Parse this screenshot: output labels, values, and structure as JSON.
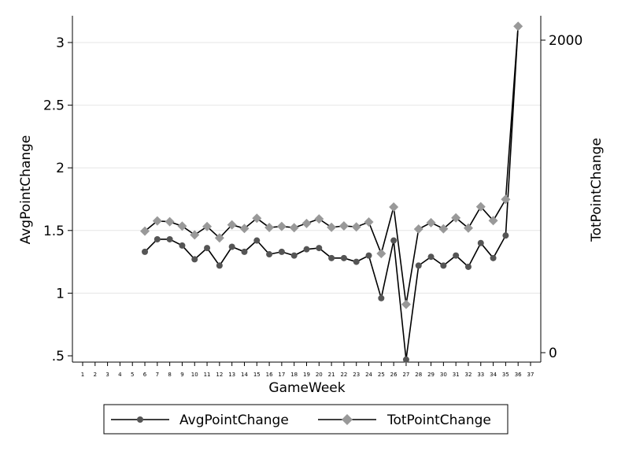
{
  "chart_data": {
    "type": "line",
    "title": "",
    "xlabel": "GameWeek",
    "ylabel_left": "AvgPointChange",
    "ylabel_right": "TotPointChange",
    "xlim": [
      0,
      37
    ],
    "x_ticks": [
      "1",
      "2",
      "3",
      "4",
      "5",
      "6",
      "7",
      "8",
      "9",
      "10",
      "11",
      "12",
      "13",
      "14",
      "15",
      "16",
      "17",
      "18",
      "19",
      "20",
      "21",
      "22",
      "23",
      "24",
      "25",
      "26",
      "27",
      "28",
      "29",
      "30",
      "31",
      "32",
      "33",
      "34",
      "35",
      "36",
      "37"
    ],
    "ylim_left": [
      0.5,
      3.2
    ],
    "y_ticks_left": [
      {
        "value": 0.5,
        "label": ".5"
      },
      {
        "value": 1,
        "label": "1"
      },
      {
        "value": 1.5,
        "label": "1.5"
      },
      {
        "value": 2,
        "label": "2"
      },
      {
        "value": 2.5,
        "label": "2.5"
      },
      {
        "value": 3,
        "label": "3"
      }
    ],
    "ylim_right": [
      0,
      2100
    ],
    "y_ticks_right": [
      {
        "value": 0,
        "label": "0"
      },
      {
        "value": 2000,
        "label": "2000"
      }
    ],
    "grid": true,
    "legend_position": "bottom",
    "series": [
      {
        "name": "AvgPointChange",
        "axis": "left",
        "color": "#000000",
        "marker_color": "#555555",
        "marker": "circle",
        "x": [
          6,
          7,
          8,
          9,
          10,
          11,
          12,
          13,
          14,
          15,
          16,
          17,
          18,
          19,
          20,
          21,
          22,
          23,
          24,
          25,
          26,
          27,
          28,
          29,
          30,
          31,
          32,
          33,
          34,
          35,
          36
        ],
        "values": [
          1.33,
          1.43,
          1.43,
          1.38,
          1.27,
          1.36,
          1.22,
          1.37,
          1.33,
          1.42,
          1.31,
          1.33,
          1.3,
          1.35,
          1.36,
          1.28,
          1.28,
          1.25,
          1.3,
          0.96,
          1.42,
          0.47,
          1.22,
          1.29,
          1.22,
          1.3,
          1.21,
          1.4,
          1.28,
          1.46,
          3.13
        ]
      },
      {
        "name": "TotPointChange",
        "axis": "right",
        "color": "#000000",
        "marker_color": "#999999",
        "marker": "diamond",
        "x": [
          6,
          7,
          8,
          9,
          10,
          11,
          12,
          13,
          14,
          15,
          16,
          17,
          18,
          19,
          20,
          21,
          22,
          23,
          24,
          25,
          26,
          27,
          28,
          29,
          30,
          31,
          32,
          33,
          34,
          35,
          36
        ],
        "values": [
          778,
          843,
          838,
          810,
          754,
          807,
          734,
          818,
          795,
          860,
          801,
          808,
          800,
          827,
          856,
          802,
          811,
          805,
          836,
          634,
          932,
          309,
          791,
          832,
          793,
          863,
          797,
          934,
          845,
          981,
          2089
        ]
      }
    ]
  }
}
